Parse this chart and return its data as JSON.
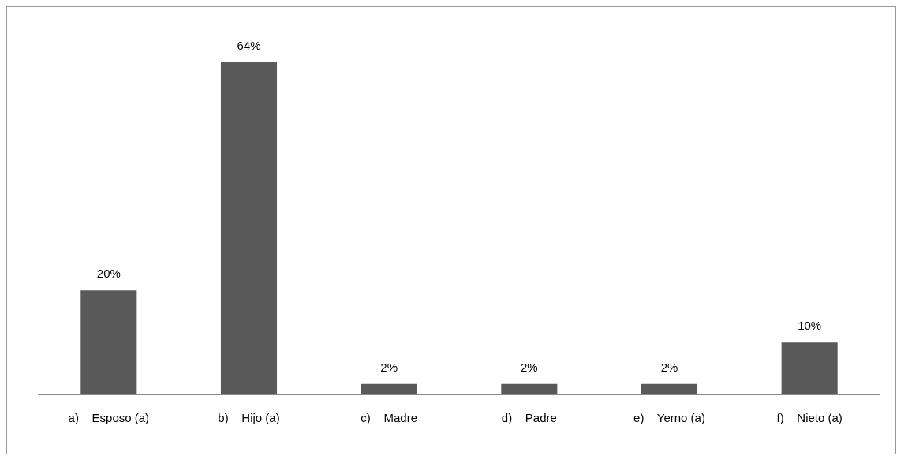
{
  "chart_data": {
    "type": "bar",
    "categories": [
      "a)    Esposo (a)",
      "b)    Hijo (a)",
      "c)    Madre",
      "d)    Padre",
      "e)    Yerno (a)",
      "f)    Nieto (a)"
    ],
    "values": [
      20,
      64,
      2,
      2,
      2,
      10
    ],
    "value_labels": [
      "20%",
      "64%",
      "2%",
      "2%",
      "2%",
      "10%"
    ],
    "color": "#595959"
  }
}
